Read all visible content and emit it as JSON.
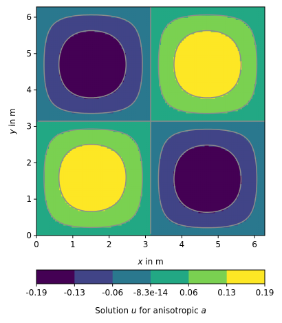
{
  "chart_data": {
    "type": "heatmap",
    "subtype": "filled-contour",
    "xlabel_var": "x",
    "xlabel_rest": " in m",
    "ylabel_var": "y",
    "ylabel_rest": " in m",
    "xlim": [
      0,
      6.283
    ],
    "ylim": [
      0,
      6.283
    ],
    "xticks": [
      0,
      1,
      2,
      3,
      4,
      5,
      6
    ],
    "yticks": [
      0,
      1,
      2,
      3,
      4,
      5,
      6
    ],
    "field": {
      "description": "u(x,y) ~ 0.19 * sin(x)*sin(y) over [0,2π]^2 with anisotropic distortion",
      "amplitude": 0.19,
      "quadrants": [
        {
          "name": "lower-left",
          "sign": 1,
          "center": [
            1.5,
            1.6
          ]
        },
        {
          "name": "upper-left",
          "sign": -1,
          "center": [
            1.5,
            4.7
          ]
        },
        {
          "name": "upper-right",
          "sign": 1,
          "center": [
            4.7,
            4.7
          ]
        },
        {
          "name": "lower-right",
          "sign": -1,
          "center": [
            4.7,
            1.55
          ]
        }
      ]
    },
    "colorbar": {
      "tick_labels": [
        "-0.19",
        "-0.13",
        "-0.06",
        "-8.3e-14",
        "0.06",
        "0.13",
        "0.19"
      ],
      "levels": [
        -0.19,
        -0.13,
        -0.06,
        -8.3e-14,
        0.06,
        0.13,
        0.19
      ],
      "colors": [
        "#440154",
        "#414487",
        "#2a788e",
        "#22a884",
        "#7ad151",
        "#fde725"
      ],
      "label_prefix": "Solution ",
      "label_var1": "u",
      "label_mid": " for anisotropic ",
      "label_var2": "a"
    },
    "contour_line_color": "#8c8c8c"
  }
}
